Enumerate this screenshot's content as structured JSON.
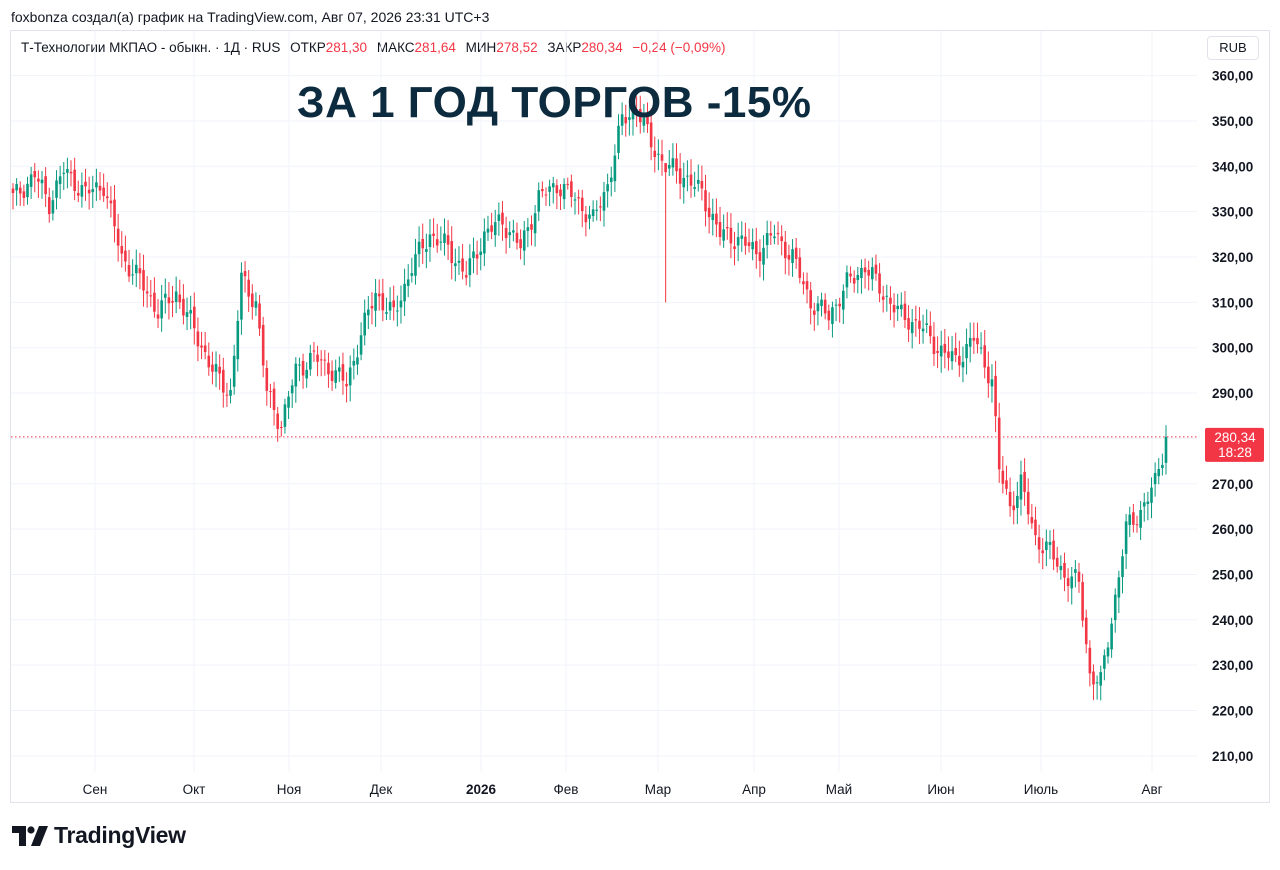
{
  "caption": "foxbonza создал(а) график на TradingView.com, Авг 07, 2026 23:31 UTC+3",
  "legend": {
    "symbol": "Т-Технологии МКПАО - обыкн. · 1Д · RUS",
    "open_label": "ОТКР",
    "open": "281,30",
    "high_label": "МАКС",
    "high": "281,64",
    "low_label": "МИН",
    "low": "278,52",
    "close_label": "ЗАКР",
    "close": "280,34",
    "change": "−0,24 (−0,09%)"
  },
  "currency": "RUB",
  "headline": "ЗА 1 ГОД ТОРГОВ -15%",
  "price_tag": {
    "price": "280,34",
    "countdown": "18:28"
  },
  "brand": {
    "name": "TradingView"
  },
  "colors": {
    "up": "#089981",
    "down": "#f23645",
    "headline": "#0d2b3e",
    "grid": "#f0f3fa"
  },
  "chart_data": {
    "type": "candlestick",
    "ylim": [
      205,
      365
    ],
    "y_ticks": [
      210,
      220,
      230,
      240,
      250,
      260,
      270,
      280,
      290,
      300,
      310,
      320,
      330,
      340,
      350,
      360
    ],
    "y_tick_labels": [
      "210,00",
      "220,00",
      "230,00",
      "240,00",
      "250,00",
      "260,00",
      "270,00",
      "280,00",
      "290,00",
      "300,00",
      "310,00",
      "320,00",
      "330,00",
      "340,00",
      "350,00",
      "360,00"
    ],
    "x_labels": [
      "Сен",
      "Окт",
      "Ноя",
      "Дек",
      "2026",
      "Фев",
      "Мар",
      "Апр",
      "Май",
      "Июн",
      "Июль",
      "Авг"
    ],
    "x_label_bold": [
      false,
      false,
      false,
      false,
      true,
      false,
      false,
      false,
      false,
      false,
      false,
      false
    ],
    "last_price": 280.34,
    "close_path": [
      [
        0,
        333
      ],
      [
        6,
        338
      ],
      [
        10,
        332
      ],
      [
        14,
        339
      ],
      [
        20,
        334
      ],
      [
        25,
        336
      ],
      [
        30,
        320
      ],
      [
        35,
        315
      ],
      [
        40,
        308
      ],
      [
        45,
        312
      ],
      [
        50,
        304
      ],
      [
        55,
        295
      ],
      [
        60,
        290
      ],
      [
        63,
        315
      ],
      [
        67,
        310
      ],
      [
        70,
        290
      ],
      [
        74,
        283
      ],
      [
        78,
        295
      ],
      [
        83,
        298
      ],
      [
        88,
        295
      ],
      [
        92,
        292
      ],
      [
        96,
        303
      ],
      [
        100,
        312
      ],
      [
        105,
        307
      ],
      [
        110,
        318
      ],
      [
        115,
        325
      ],
      [
        120,
        322
      ],
      [
        125,
        316
      ],
      [
        130,
        325
      ],
      [
        135,
        328
      ],
      [
        140,
        322
      ],
      [
        145,
        333
      ],
      [
        150,
        336
      ],
      [
        155,
        333
      ],
      [
        160,
        328
      ],
      [
        164,
        336
      ],
      [
        168,
        350
      ],
      [
        172,
        353
      ],
      [
        176,
        345
      ],
      [
        180,
        340
      ],
      [
        185,
        338
      ],
      [
        190,
        334
      ],
      [
        195,
        325
      ],
      [
        200,
        324
      ],
      [
        205,
        321
      ],
      [
        210,
        325
      ],
      [
        215,
        320
      ],
      [
        220,
        310
      ],
      [
        225,
        307
      ],
      [
        230,
        314
      ],
      [
        235,
        318
      ],
      [
        240,
        312
      ],
      [
        245,
        307
      ],
      [
        250,
        305
      ],
      [
        255,
        300
      ],
      [
        260,
        297
      ],
      [
        265,
        302
      ],
      [
        270,
        293
      ],
      [
        272,
        273
      ],
      [
        275,
        265
      ],
      [
        278,
        270
      ],
      [
        282,
        258
      ],
      [
        286,
        255
      ],
      [
        290,
        250
      ],
      [
        294,
        248
      ],
      [
        297,
        228
      ],
      [
        300,
        226
      ],
      [
        304,
        245
      ],
      [
        307,
        260
      ],
      [
        311,
        264
      ],
      [
        315,
        270
      ],
      [
        318,
        280
      ]
    ],
    "wicks": [
      [
        180,
        310,
        340
      ]
    ]
  }
}
